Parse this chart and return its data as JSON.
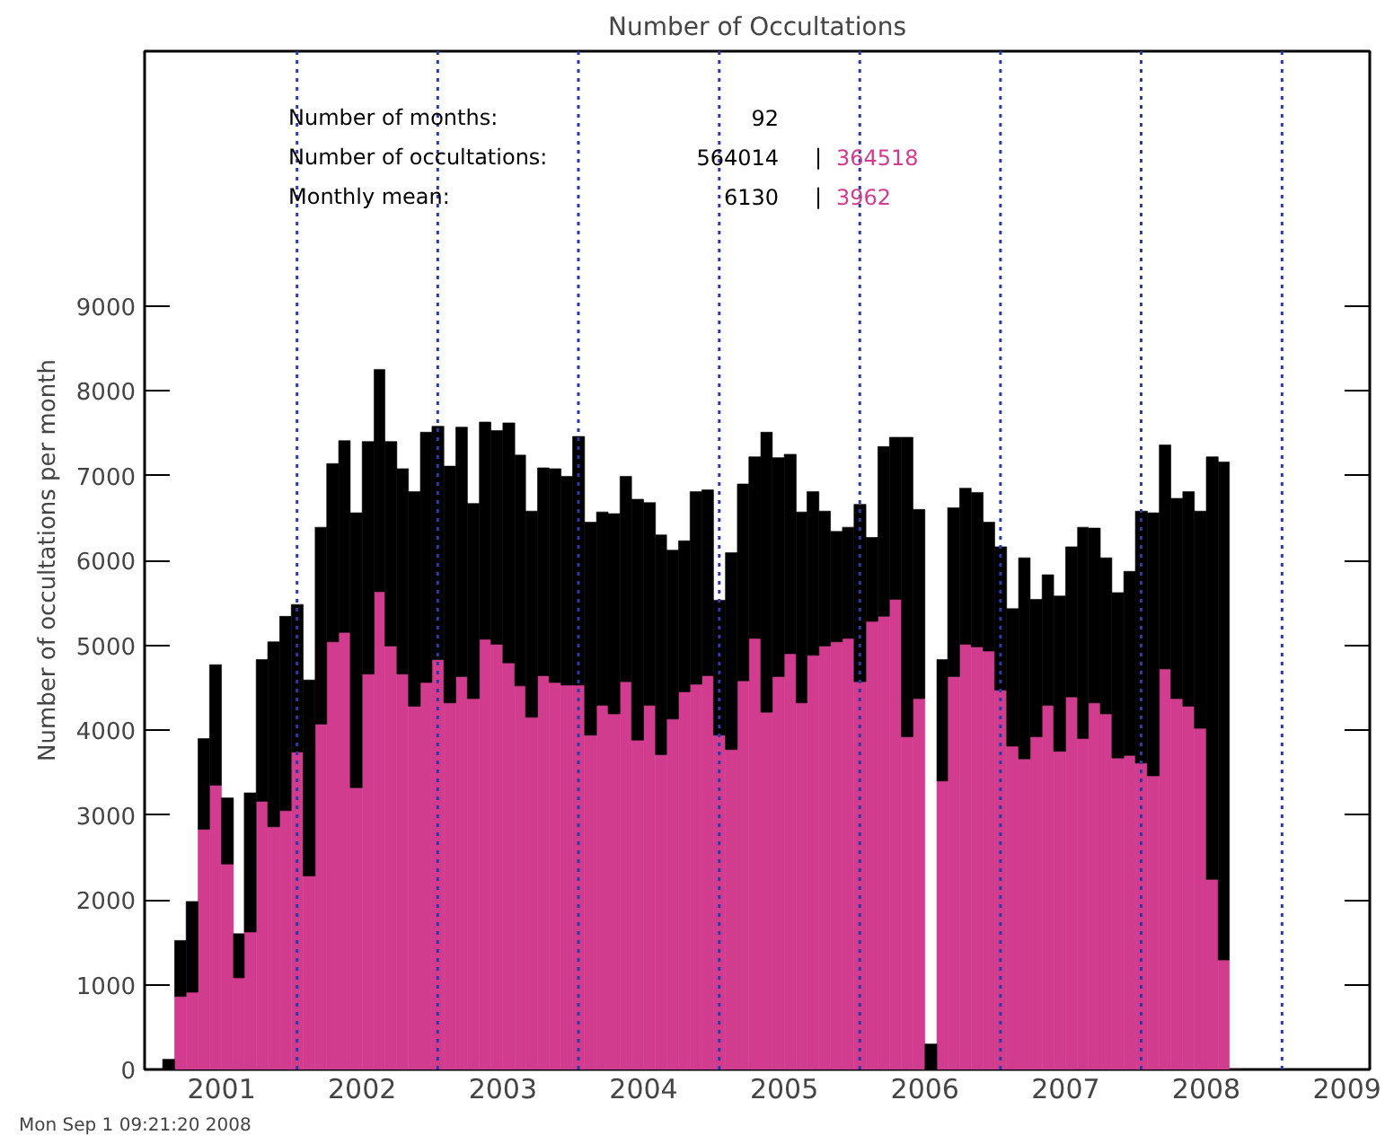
{
  "chart_data": {
    "type": "bar",
    "title": "Number of Occultations",
    "ylabel": "Number of occultations per month",
    "x": [
      "2000-08",
      "2000-09",
      "2000-10",
      "2000-11",
      "2000-12",
      "2001-01",
      "2001-02",
      "2001-03",
      "2001-04",
      "2001-05",
      "2001-06",
      "2001-07",
      "2001-08",
      "2001-09",
      "2001-10",
      "2001-11",
      "2001-12",
      "2002-01",
      "2002-02",
      "2002-03",
      "2002-04",
      "2002-05",
      "2002-06",
      "2002-07",
      "2002-08",
      "2002-09",
      "2002-10",
      "2002-11",
      "2002-12",
      "2003-01",
      "2003-02",
      "2003-03",
      "2003-04",
      "2003-05",
      "2003-06",
      "2003-07",
      "2003-08",
      "2003-09",
      "2003-10",
      "2003-11",
      "2003-12",
      "2004-01",
      "2004-02",
      "2004-03",
      "2004-04",
      "2004-05",
      "2004-06",
      "2004-07",
      "2004-08",
      "2004-09",
      "2004-10",
      "2004-11",
      "2004-12",
      "2005-01",
      "2005-02",
      "2005-03",
      "2005-04",
      "2005-05",
      "2005-06",
      "2005-07",
      "2005-08",
      "2005-09",
      "2005-10",
      "2005-11",
      "2005-12",
      "2006-01",
      "2006-02",
      "2006-03",
      "2006-04",
      "2006-05",
      "2006-06",
      "2006-07",
      "2006-08",
      "2006-09",
      "2006-10",
      "2006-11",
      "2006-12",
      "2007-01",
      "2007-02",
      "2007-03",
      "2007-04",
      "2007-05",
      "2007-06",
      "2007-07",
      "2007-08",
      "2007-09",
      "2007-10",
      "2007-11",
      "2007-12",
      "2008-01",
      "2008-02",
      "2008-03"
    ],
    "series": [
      {
        "color": "#d23c8e",
        "values": [
          0,
          860,
          910,
          2830,
          3350,
          2420,
          1080,
          1620,
          3160,
          2860,
          3050,
          3740,
          2280,
          4070,
          5040,
          5150,
          3320,
          4660,
          5630,
          4990,
          4660,
          4280,
          4560,
          4830,
          4320,
          4630,
          4370,
          5070,
          5010,
          4790,
          4520,
          4150,
          4640,
          4560,
          4530,
          4530,
          3940,
          4290,
          4190,
          4570,
          3880,
          4290,
          3710,
          4130,
          4450,
          4540,
          4640,
          3940,
          3770,
          4580,
          5080,
          4210,
          4630,
          4900,
          4320,
          4880,
          4990,
          5040,
          5080,
          4570,
          5280,
          5340,
          5540,
          3920,
          4370,
          0,
          3400,
          4630,
          5010,
          4980,
          4930,
          4470,
          3810,
          3660,
          3920,
          4290,
          3750,
          4390,
          3900,
          4320,
          4190,
          3670,
          3700,
          3610,
          3460,
          4720,
          4370,
          4280,
          4020,
          2240,
          1290,
          0
        ]
      },
      {
        "color": "#000000",
        "values": [
          120,
          660,
          1070,
          1070,
          1420,
          780,
          520,
          1640,
          1670,
          2180,
          2290,
          1740,
          2310,
          2320,
          2100,
          2260,
          3240,
          2740,
          2620,
          2410,
          2420,
          2530,
          2950,
          2750,
          2790,
          2940,
          2300,
          2560,
          2520,
          2830,
          2720,
          2430,
          2450,
          2520,
          2460,
          2930,
          2510,
          2280,
          2360,
          2420,
          2840,
          2390,
          2590,
          1990,
          1780,
          2270,
          2190,
          1590,
          2320,
          2320,
          2140,
          3300,
          2580,
          2350,
          2250,
          1930,
          1590,
          1300,
          1310,
          2090,
          990,
          2000,
          1910,
          3530,
          2230,
          300,
          1430,
          1990,
          1840,
          1820,
          1520,
          1690,
          1620,
          2370,
          1620,
          1540,
          1830,
          1770,
          2490,
          2060,
          1840,
          1950,
          2170,
          2970,
          3100,
          2640,
          2360,
          2530,
          2560,
          4980,
          5870,
          0
        ]
      }
    ],
    "stacked": true,
    "xlim": [
      "2000-06-15",
      "2009-03-01"
    ],
    "xticks": [
      {
        "value": "2001-01-01",
        "label": "2001"
      },
      {
        "value": "2002-01-01",
        "label": "2002"
      },
      {
        "value": "2003-01-01",
        "label": "2003"
      },
      {
        "value": "2004-01-01",
        "label": "2004"
      },
      {
        "value": "2005-01-01",
        "label": "2005"
      },
      {
        "value": "2006-01-01",
        "label": "2006"
      },
      {
        "value": "2007-01-01",
        "label": "2007"
      },
      {
        "value": "2008-01-01",
        "label": "2008"
      },
      {
        "value": "2009-01-01",
        "label": "2009"
      }
    ],
    "ylim": [
      0,
      12000
    ],
    "yticks": [
      0,
      1000,
      2000,
      3000,
      4000,
      5000,
      6000,
      7000,
      8000,
      9000
    ],
    "ref_lines": [
      {
        "axis": "x",
        "value": "2001-07-16",
        "color": "#2a3aa8",
        "line_style": "dotted"
      },
      {
        "axis": "x",
        "value": "2002-07-16",
        "color": "#2a3aa8",
        "line_style": "dotted"
      },
      {
        "axis": "x",
        "value": "2003-07-16",
        "color": "#2a3aa8",
        "line_style": "dotted"
      },
      {
        "axis": "x",
        "value": "2004-07-16",
        "color": "#2a3aa8",
        "line_style": "dotted"
      },
      {
        "axis": "x",
        "value": "2005-07-16",
        "color": "#2a3aa8",
        "line_style": "dotted"
      },
      {
        "axis": "x",
        "value": "2006-07-16",
        "color": "#2a3aa8",
        "line_style": "dotted"
      },
      {
        "axis": "x",
        "value": "2007-07-16",
        "color": "#2a3aa8",
        "line_style": "dotted"
      },
      {
        "axis": "x",
        "value": "2008-07-16",
        "color": "#2a3aa8",
        "line_style": "dotted"
      }
    ],
    "annotations": [
      "Number of months:",
      "92",
      "Number of occultations:",
      "564014",
      "|",
      "364518",
      "Monthly mean:",
      "6130",
      "|",
      "3962",
      "Mon Sep  1 09:21:20 2008"
    ],
    "grid": false
  }
}
